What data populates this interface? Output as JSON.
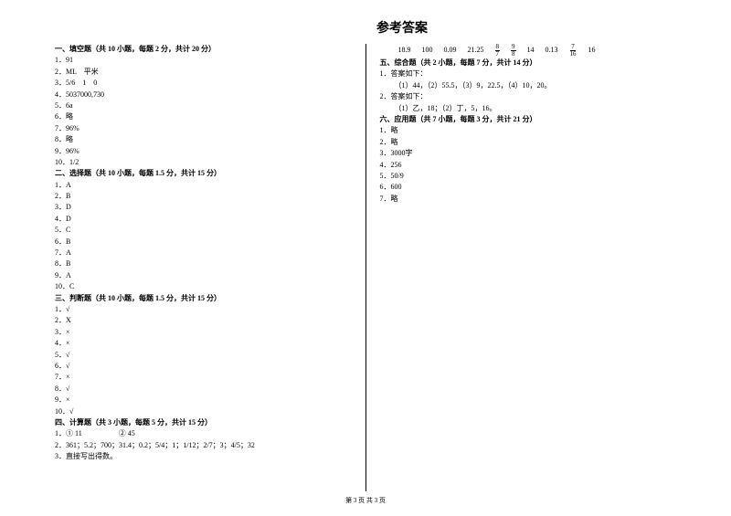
{
  "title": "参考答案",
  "footer": "第 3 页 共 3 页",
  "sections": {
    "s1": {
      "header": "一、填空题（共 10 小题，每题 2 分，共计 20 分）",
      "items": [
        "1．91",
        "2．ML　平米",
        "3．5/6　1　0",
        "4．5037000,730",
        "5．6a",
        "6．略",
        "7．96%",
        "8．略",
        "9．96%",
        "10．1/2"
      ]
    },
    "s2": {
      "header": "二、选择题（共 10 小题，每题 1.5 分，共计 15 分）",
      "items": [
        "1．A",
        "2．B",
        "3．D",
        "4．D",
        "5．C",
        "6．B",
        "7．A",
        "8．B",
        "9．A",
        "10．C"
      ]
    },
    "s3": {
      "header": "三、判断题（共 10 小题，每题 1.5 分，共计 15 分）",
      "items": [
        "1．√",
        "2．X",
        "3．×",
        "4．×",
        "5．√",
        "6．√",
        "7．×",
        "8．√",
        "9．×",
        "10．√"
      ]
    },
    "s4": {
      "header": "四、计算题（共 3 小题，每题 5 分，共计 15 分）",
      "items": [
        "1．① 11　　　　　② 45",
        "2．361；5.2；700；31.4；0.2；5/4；1；1/12；2/7；3；4/5；32",
        "3．直接写出得数。"
      ]
    },
    "s5": {
      "header": "五、综合题（共 2 小题，每题 7 分，共计 14 分）",
      "items": [
        "1．答案如下：",
        "（1）44，（2）55.5，（3）9，22.5，（4）10，20。",
        "2．答案如下：",
        "（1）乙，18；（2）丁，5，16。"
      ]
    },
    "s6": {
      "header": "六、应用题（共 7 小题，每题 3 分，共计 21 分）",
      "items": [
        "1．略",
        "2．略",
        "3．3000字",
        "4．256",
        "5．50/9",
        "6．600",
        "7．略"
      ]
    }
  },
  "calc_row": {
    "v1": "18.9",
    "v2": "100",
    "v3": "0.09",
    "v4": "21.25",
    "f1_num": "8",
    "f1_den": "7",
    "f2_num": "9",
    "f2_den": "8",
    "v5": "14",
    "v6": "0.13",
    "f3_num": "7",
    "f3_den": "16",
    "v7": "16"
  },
  "colors": {
    "text": "#000000",
    "background": "#ffffff",
    "divider": "#000000"
  }
}
